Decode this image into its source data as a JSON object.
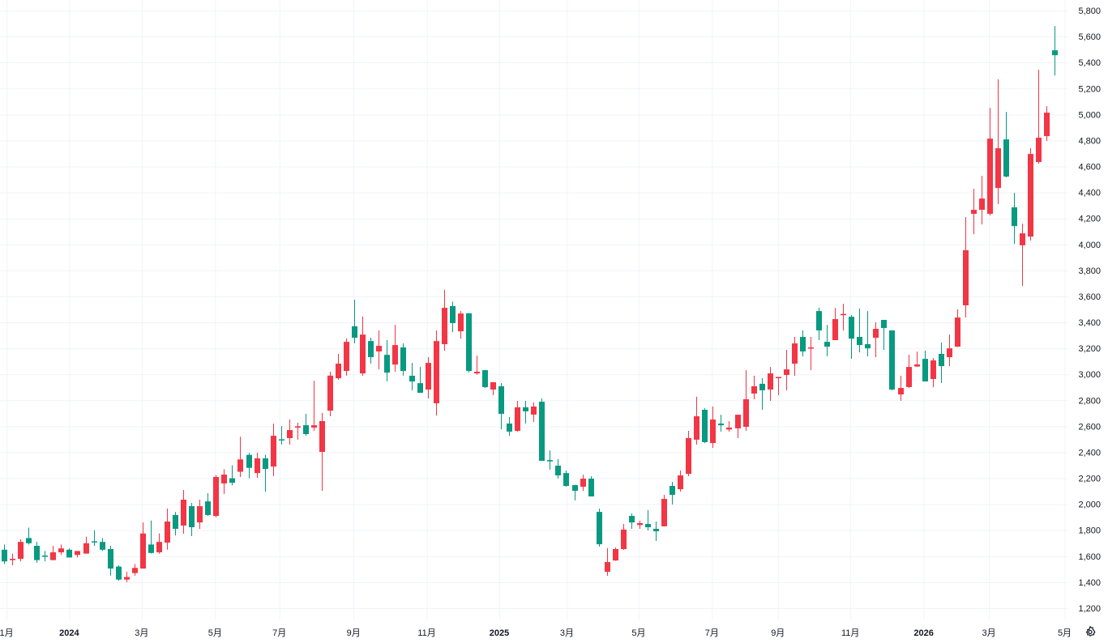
{
  "chart_data": {
    "type": "candlestick",
    "title": "",
    "colors": {
      "up": "#f23645",
      "down": "#089981",
      "grid": "#f0f3fa",
      "text": "#131722"
    },
    "ylim": [
      1200,
      5800
    ],
    "yticks": [
      "1,200",
      "1,400",
      "1,600",
      "1,800",
      "2,000",
      "2,200",
      "2,400",
      "2,600",
      "2,800",
      "3,000",
      "3,200",
      "3,400",
      "3,600",
      "3,800",
      "4,000",
      "4,200",
      "4,400",
      "4,600",
      "4,800",
      "5,000",
      "5,200",
      "5,400",
      "5,600",
      "5,800"
    ],
    "ytick_values": [
      1200,
      1400,
      1600,
      1800,
      2000,
      2200,
      2400,
      2600,
      2800,
      3000,
      3200,
      3400,
      3600,
      3800,
      4000,
      4200,
      4400,
      4600,
      4800,
      5000,
      5200,
      5400,
      5600,
      5800
    ],
    "xticks": [
      {
        "label": "1月",
        "at": 0.3,
        "year": false
      },
      {
        "label": "2024",
        "at": 8,
        "year": true
      },
      {
        "label": "3月",
        "at": 16.9,
        "year": false
      },
      {
        "label": "5月",
        "at": 25.9,
        "year": false
      },
      {
        "label": "7月",
        "at": 33.8,
        "year": false
      },
      {
        "label": "9月",
        "at": 42.9,
        "year": false
      },
      {
        "label": "11月",
        "at": 51.9,
        "year": false
      },
      {
        "label": "2025",
        "at": 60.8,
        "year": true
      },
      {
        "label": "3月",
        "at": 69.1,
        "year": false
      },
      {
        "label": "5月",
        "at": 77.9,
        "year": false
      },
      {
        "label": "7月",
        "at": 86.9,
        "year": false
      },
      {
        "label": "9月",
        "at": 95.0,
        "year": false
      },
      {
        "label": "11月",
        "at": 103.9,
        "year": false
      },
      {
        "label": "2026",
        "at": 112.9,
        "year": true
      },
      {
        "label": "3月",
        "at": 120.9,
        "year": false
      },
      {
        "label": "5月",
        "at": 130.2,
        "year": false
      }
    ],
    "ohlc_fields": [
      "open",
      "high",
      "low",
      "close"
    ],
    "candles": [
      [
        1650,
        1690,
        1540,
        1560
      ],
      [
        1570,
        1620,
        1530,
        1580
      ],
      [
        1580,
        1730,
        1560,
        1710
      ],
      [
        1740,
        1820,
        1690,
        1700
      ],
      [
        1680,
        1710,
        1550,
        1570
      ],
      [
        1605,
        1640,
        1560,
        1600
      ],
      [
        1570,
        1680,
        1570,
        1630
      ],
      [
        1630,
        1690,
        1610,
        1660
      ],
      [
        1650,
        1660,
        1590,
        1590
      ],
      [
        1610,
        1640,
        1590,
        1640
      ],
      [
        1620,
        1750,
        1620,
        1700
      ],
      [
        1715,
        1800,
        1680,
        1710
      ],
      [
        1710,
        1740,
        1640,
        1650
      ],
      [
        1655,
        1680,
        1450,
        1505
      ],
      [
        1520,
        1530,
        1410,
        1420
      ],
      [
        1420,
        1480,
        1400,
        1440
      ],
      [
        1470,
        1540,
        1450,
        1510
      ],
      [
        1505,
        1860,
        1505,
        1775
      ],
      [
        1690,
        1875,
        1620,
        1625
      ],
      [
        1630,
        1775,
        1620,
        1710
      ],
      [
        1705,
        1967,
        1650,
        1867
      ],
      [
        1917,
        1940,
        1760,
        1811
      ],
      [
        1836,
        2110,
        1773,
        2035
      ],
      [
        1985,
        2010,
        1755,
        1823
      ],
      [
        1860,
        2035,
        1810,
        1985
      ],
      [
        2022,
        2085,
        1910,
        1917
      ],
      [
        1910,
        2225,
        1900,
        2210
      ],
      [
        2160,
        2270,
        2080,
        2228
      ],
      [
        2200,
        2300,
        2145,
        2165
      ],
      [
        2250,
        2520,
        2210,
        2345
      ],
      [
        2380,
        2395,
        2200,
        2280
      ],
      [
        2240,
        2397,
        2203,
        2353
      ],
      [
        2353,
        2380,
        2097,
        2272
      ],
      [
        2290,
        2620,
        2216,
        2527
      ],
      [
        2500,
        2602,
        2459,
        2495
      ],
      [
        2509,
        2652,
        2459,
        2571
      ],
      [
        2590,
        2627,
        2497,
        2600
      ],
      [
        2608,
        2696,
        2527,
        2540
      ],
      [
        2590,
        2950,
        2565,
        2608
      ],
      [
        2403,
        2702,
        2103,
        2640
      ],
      [
        2720,
        3020,
        2677,
        2990
      ],
      [
        2970,
        3157,
        2958,
        3082
      ],
      [
        3026,
        3276,
        2990,
        3250
      ],
      [
        3370,
        3575,
        3238,
        3281
      ],
      [
        3007,
        3445,
        2990,
        3306
      ],
      [
        3256,
        3281,
        3082,
        3132
      ],
      [
        3176,
        3338,
        3038,
        3219
      ],
      [
        3150,
        3263,
        2945,
        3013
      ],
      [
        3075,
        3381,
        3020,
        3225
      ],
      [
        3207,
        3238,
        2990,
        3026
      ],
      [
        2989,
        3088,
        2876,
        2945
      ],
      [
        2932,
        3057,
        2858,
        2858
      ],
      [
        2883,
        3132,
        2814,
        3088
      ],
      [
        2777,
        3338,
        2683,
        3256
      ],
      [
        3232,
        3650,
        3182,
        3512
      ],
      [
        3525,
        3560,
        3325,
        3394
      ],
      [
        3331,
        3487,
        3275,
        3468
      ],
      [
        3470,
        3470,
        3013,
        3026
      ],
      [
        3007,
        3144,
        2995,
        3020
      ],
      [
        3032,
        3035,
        2895,
        2901
      ],
      [
        2883,
        2940,
        2839,
        2939
      ],
      [
        2908,
        2933,
        2577,
        2696
      ],
      [
        2621,
        2671,
        2527,
        2559
      ],
      [
        2565,
        2796,
        2559,
        2746
      ],
      [
        2746,
        2796,
        2621,
        2715
      ],
      [
        2690,
        2783,
        2633,
        2752
      ],
      [
        2789,
        2814,
        2334,
        2334
      ],
      [
        2340,
        2415,
        2266,
        2330
      ],
      [
        2297,
        2347,
        2197,
        2222
      ],
      [
        2240,
        2260,
        2135,
        2141
      ],
      [
        2147,
        2150,
        2029,
        2103
      ],
      [
        2135,
        2228,
        2103,
        2197
      ],
      [
        2197,
        2216,
        2060,
        2060
      ],
      [
        1941,
        1967,
        1674,
        1692
      ],
      [
        1480,
        1661,
        1449,
        1555
      ],
      [
        1567,
        1667,
        1565,
        1655
      ],
      [
        1655,
        1848,
        1649,
        1805
      ],
      [
        1910,
        1929,
        1811,
        1860
      ],
      [
        1840,
        1873,
        1811,
        1855
      ],
      [
        1848,
        1955,
        1798,
        1823
      ],
      [
        1811,
        1867,
        1717,
        1792
      ],
      [
        1830,
        2072,
        1830,
        2041
      ],
      [
        2141,
        2172,
        1998,
        2072
      ],
      [
        2116,
        2260,
        2097,
        2222
      ],
      [
        2234,
        2565,
        2216,
        2509
      ],
      [
        2497,
        2827,
        2459,
        2677
      ],
      [
        2727,
        2739,
        2471,
        2478
      ],
      [
        2471,
        2752,
        2434,
        2652
      ],
      [
        2621,
        2689,
        2559,
        2608
      ],
      [
        2575,
        2640,
        2559,
        2590
      ],
      [
        2584,
        2689,
        2509,
        2689
      ],
      [
        2596,
        3032,
        2565,
        2808
      ],
      [
        2852,
        2989,
        2808,
        2908
      ],
      [
        2927,
        2970,
        2727,
        2877
      ],
      [
        2883,
        3057,
        2796,
        3007
      ],
      [
        2970,
        2976,
        2839,
        2980
      ],
      [
        2995,
        3188,
        2877,
        3038
      ],
      [
        3082,
        3288,
        2989,
        3238
      ],
      [
        3288,
        3338,
        3138,
        3176
      ],
      [
        3200,
        3288,
        3032,
        3207
      ],
      [
        3487,
        3512,
        3263,
        3338
      ],
      [
        3250,
        3381,
        3138,
        3213
      ],
      [
        3263,
        3512,
        3263,
        3425
      ],
      [
        3455,
        3543,
        3338,
        3465
      ],
      [
        3443,
        3456,
        3119,
        3275
      ],
      [
        3288,
        3506,
        3169,
        3225
      ],
      [
        3232,
        3487,
        3138,
        3200
      ],
      [
        3281,
        3400,
        3132,
        3350
      ],
      [
        3419,
        3419,
        3188,
        3356
      ],
      [
        3338,
        3338,
        2877,
        2883
      ],
      [
        2845,
        2989,
        2796,
        2895
      ],
      [
        2902,
        3150,
        2895,
        3057
      ],
      [
        3060,
        3175,
        3057,
        3076
      ],
      [
        3119,
        3182,
        2945,
        2945
      ],
      [
        2964,
        3125,
        2902,
        3107
      ],
      [
        3157,
        3244,
        2933,
        3063
      ],
      [
        3132,
        3306,
        3063,
        3200
      ],
      [
        3213,
        3500,
        3210,
        3437
      ],
      [
        3531,
        4210,
        3437,
        3955
      ],
      [
        4235,
        4428,
        4079,
        4266
      ],
      [
        4266,
        4528,
        4154,
        4353
      ],
      [
        4235,
        5051,
        4223,
        4814
      ],
      [
        4434,
        5270,
        4310,
        4740
      ],
      [
        4808,
        5020,
        4515,
        4522
      ],
      [
        4285,
        4397,
        4004,
        4141
      ],
      [
        3993,
        4160,
        3680,
        4085
      ],
      [
        4060,
        4740,
        4029,
        4696
      ],
      [
        4634,
        5344,
        4622,
        4821
      ],
      [
        4833,
        5064,
        4796,
        5014
      ],
      [
        5494,
        5681,
        5300,
        5456
      ]
    ]
  },
  "controls": {
    "settings_icon": "gear-icon"
  }
}
